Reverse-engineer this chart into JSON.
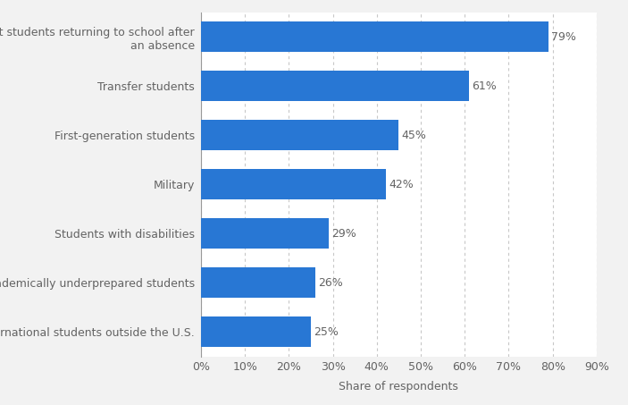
{
  "categories": [
    "International students outside the U.S.",
    "Academically underprepared students",
    "Students with disabilities",
    "Military",
    "First-generation students",
    "Transfer students",
    "Adult students returning to school after\nan absence"
  ],
  "values": [
    25,
    26,
    29,
    42,
    45,
    61,
    79
  ],
  "bar_color": "#2877d4",
  "label_color": "#636363",
  "value_color": "#636363",
  "xlabel": "Share of respondents",
  "xlim": [
    0,
    90
  ],
  "xticks": [
    0,
    10,
    20,
    30,
    40,
    50,
    60,
    70,
    80,
    90
  ],
  "background_color": "#f2f2f2",
  "plot_area_color": "#ffffff",
  "grid_color": "#c8c8c8",
  "bar_height": 0.62,
  "figsize": [
    7.03,
    4.53
  ],
  "dpi": 100,
  "label_fontsize": 9,
  "value_fontsize": 9,
  "xlabel_fontsize": 9
}
